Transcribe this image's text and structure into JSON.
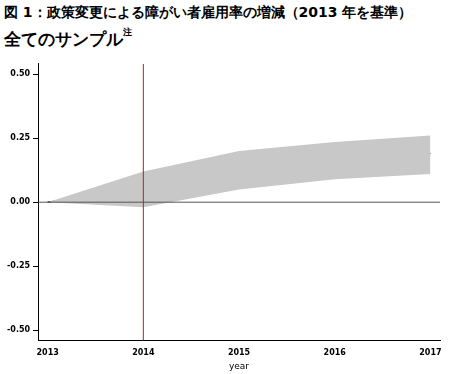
{
  "chart_data": {
    "type": "line",
    "title": "図 1：政策変更による障がい者雇用率の増減（2013 年を基準）",
    "subtitle": "全てのサンプル",
    "subtitle_note": "注",
    "x_label": "year",
    "x": [
      2013,
      2014,
      2015,
      2016,
      2017
    ],
    "values": [
      0,
      0.05,
      0.13,
      0.165,
      0.19
    ],
    "lower": [
      0,
      -0.02,
      0.05,
      0.09,
      0.11
    ],
    "upper": [
      0,
      0.12,
      0.2,
      0.235,
      0.26
    ],
    "color": "#000000",
    "band_color": "#c8c8c8",
    "xlim": [
      2012.9,
      2017.1
    ],
    "xticks": [
      2013,
      2014,
      2015,
      2016,
      2017
    ],
    "ylim": [
      -0.54,
      0.54
    ],
    "yticks": [
      {
        "value": -0.5,
        "label": "-0.50"
      },
      -0.25,
      {
        "value": 0,
        "label": "0.00"
      },
      0.25,
      {
        "value": 0.5,
        "label": "0.50"
      }
    ],
    "reference_lines": [
      {
        "axis": "x",
        "value": 2014,
        "color": "#b22222"
      },
      {
        "axis": "y",
        "value": 0,
        "color": "#555555"
      }
    ],
    "grid": false
  }
}
